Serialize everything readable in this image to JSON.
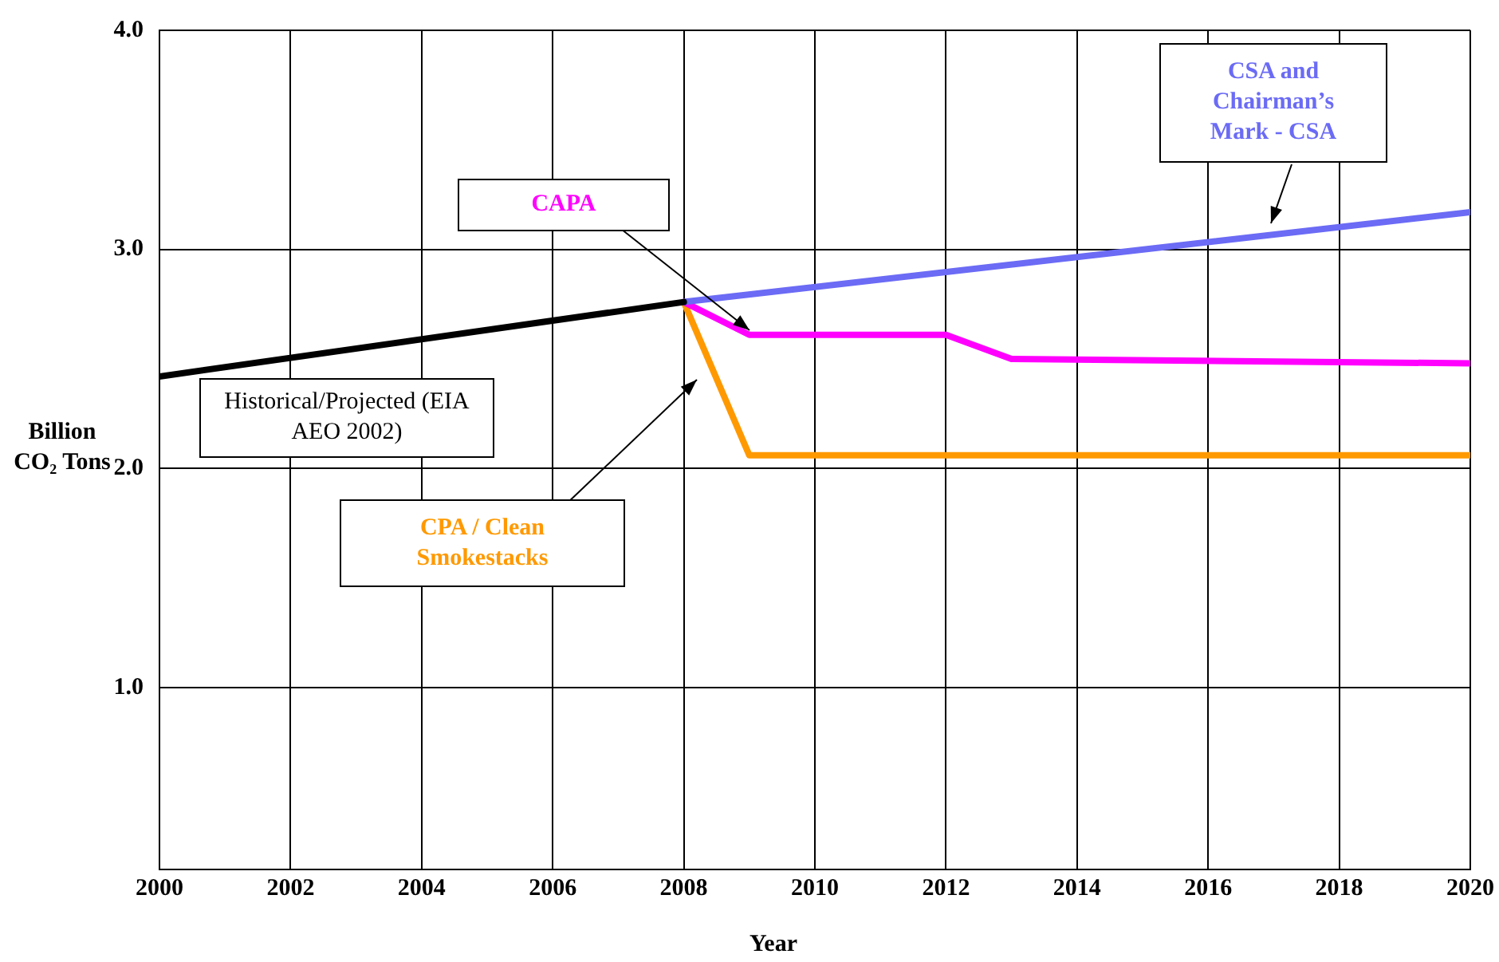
{
  "chart_data": {
    "type": "line",
    "xlabel": "Year",
    "ylabel": "Billion CO₂ Tons",
    "xlim": [
      2000,
      2020
    ],
    "xticks": [
      2000,
      2002,
      2004,
      2006,
      2008,
      2010,
      2012,
      2014,
      2016,
      2018,
      2020
    ],
    "ylim": [
      0.17,
      4.0
    ],
    "yticks": [
      {
        "value": 1,
        "label": "1.0"
      },
      {
        "value": 2,
        "label": "2.0"
      },
      {
        "value": 3,
        "label": "3.0"
      },
      {
        "value": 4,
        "label": "4.0"
      }
    ],
    "grid": true,
    "legend": false,
    "marker": "none",
    "line_style": "solid",
    "series": [
      {
        "name": "Historical/Projected (EIA AEO 2002)",
        "color": "#000000",
        "x": [
          2000,
          2008
        ],
        "values": [
          2.42,
          2.76
        ]
      },
      {
        "name": "CSA and Chairman’s Mark - CSA",
        "color": "#6b6bf5",
        "x": [
          2008,
          2020
        ],
        "values": [
          2.76,
          3.17
        ]
      },
      {
        "name": "CAPA",
        "color": "#ff00ff",
        "x": [
          2008,
          2009,
          2012,
          2013,
          2020
        ],
        "values": [
          2.76,
          2.61,
          2.61,
          2.5,
          2.48
        ]
      },
      {
        "name": "CPA / Clean Smokestacks",
        "color": "#ff9900",
        "x": [
          2008,
          2009,
          2020
        ],
        "values": [
          2.76,
          2.06,
          2.06
        ]
      }
    ]
  }
}
